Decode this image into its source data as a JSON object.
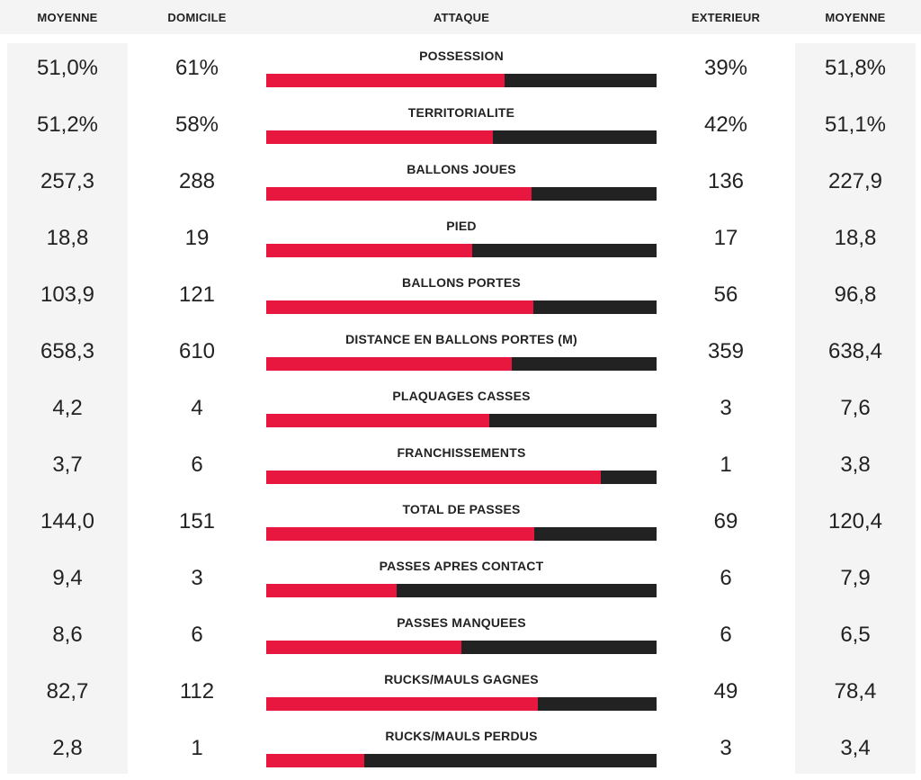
{
  "headers": {
    "left_avg": "MOYENNE",
    "home": "DOMICILE",
    "category": "ATTAQUE",
    "away": "EXTERIEUR",
    "right_avg": "MOYENNE"
  },
  "colors": {
    "home_bar": "#e8173f",
    "away_bar": "#222222",
    "avg_bg": "#f4f4f4"
  },
  "chart_data": {
    "type": "bar",
    "title": "ATTAQUE",
    "categories": [
      "POSSESSION",
      "TERRITORIALITE",
      "BALLONS JOUES",
      "PIED",
      "BALLONS PORTES",
      "DISTANCE EN BALLONS PORTES (M)",
      "PLAQUAGES CASSES",
      "FRANCHISSEMENTS",
      "TOTAL DE PASSES",
      "PASSES APRES CONTACT",
      "PASSES MANQUEES",
      "RUCKS/MAULS GAGNES",
      "RUCKS/MAULS PERDUS"
    ],
    "rows": [
      {
        "label": "POSSESSION",
        "avg_home": "51,0%",
        "home": "61%",
        "away": "39%",
        "avg_away": "51,8%",
        "home_value": 61,
        "away_value": 39
      },
      {
        "label": "TERRITORIALITE",
        "avg_home": "51,2%",
        "home": "58%",
        "away": "42%",
        "avg_away": "51,1%",
        "home_value": 58,
        "away_value": 42
      },
      {
        "label": "BALLONS JOUES",
        "avg_home": "257,3",
        "home": "288",
        "away": "136",
        "avg_away": "227,9",
        "home_value": 288,
        "away_value": 136
      },
      {
        "label": "PIED",
        "avg_home": "18,8",
        "home": "19",
        "away": "17",
        "avg_away": "18,8",
        "home_value": 19,
        "away_value": 17
      },
      {
        "label": "BALLONS PORTES",
        "avg_home": "103,9",
        "home": "121",
        "away": "56",
        "avg_away": "96,8",
        "home_value": 121,
        "away_value": 56
      },
      {
        "label": "DISTANCE EN BALLONS PORTES (M)",
        "avg_home": "658,3",
        "home": "610",
        "away": "359",
        "avg_away": "638,4",
        "home_value": 610,
        "away_value": 359
      },
      {
        "label": "PLAQUAGES CASSES",
        "avg_home": "4,2",
        "home": "4",
        "away": "3",
        "avg_away": "7,6",
        "home_value": 4,
        "away_value": 3
      },
      {
        "label": "FRANCHISSEMENTS",
        "avg_home": "3,7",
        "home": "6",
        "away": "1",
        "avg_away": "3,8",
        "home_value": 6,
        "away_value": 1
      },
      {
        "label": "TOTAL DE PASSES",
        "avg_home": "144,0",
        "home": "151",
        "away": "69",
        "avg_away": "120,4",
        "home_value": 151,
        "away_value": 69
      },
      {
        "label": "PASSES APRES CONTACT",
        "avg_home": "9,4",
        "home": "3",
        "away": "6",
        "avg_away": "7,9",
        "home_value": 3,
        "away_value": 6
      },
      {
        "label": "PASSES MANQUEES",
        "avg_home": "8,6",
        "home": "6",
        "away": "6",
        "avg_away": "6,5",
        "home_value": 6,
        "away_value": 6
      },
      {
        "label": "RUCKS/MAULS GAGNES",
        "avg_home": "82,7",
        "home": "112",
        "away": "49",
        "avg_away": "78,4",
        "home_value": 112,
        "away_value": 49
      },
      {
        "label": "RUCKS/MAULS PERDUS",
        "avg_home": "2,8",
        "home": "1",
        "away": "3",
        "avg_away": "3,4",
        "home_value": 1,
        "away_value": 3
      }
    ]
  }
}
